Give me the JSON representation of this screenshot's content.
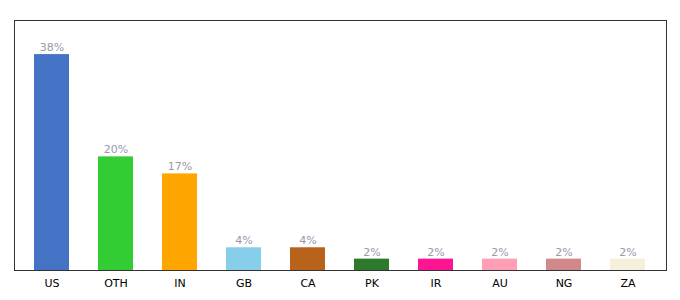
{
  "chart_data": {
    "type": "bar",
    "categories": [
      "US",
      "OTH",
      "IN",
      "GB",
      "CA",
      "PK",
      "IR",
      "AU",
      "NG",
      "ZA"
    ],
    "values": [
      38,
      20,
      17,
      4,
      4,
      2,
      2,
      2,
      2,
      2
    ],
    "value_labels": [
      "38%",
      "20%",
      "17%",
      "4%",
      "4%",
      "2%",
      "2%",
      "2%",
      "2%",
      "2%"
    ],
    "colors": [
      "#4472C4",
      "#33CC33",
      "#FFA500",
      "#87CEEB",
      "#B8621B",
      "#2D7A2D",
      "#FF1493",
      "#FF9EB5",
      "#D08888",
      "#F5F0DC"
    ],
    "ylim": [
      0,
      44
    ],
    "grid": false,
    "data_labels": true,
    "tick_labels": "x"
  }
}
